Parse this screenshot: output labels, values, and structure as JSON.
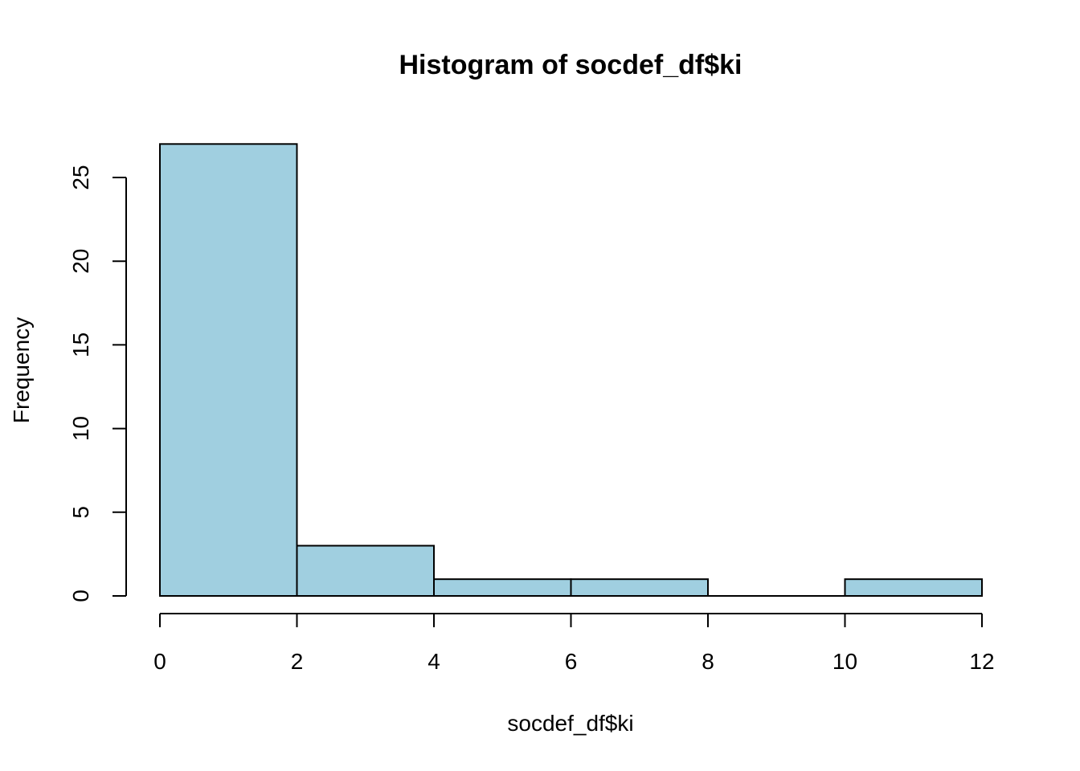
{
  "chart_data": {
    "type": "bar",
    "subtype": "histogram",
    "title": "Histogram of socdef_df$ki",
    "xlabel": "socdef_df$ki",
    "ylabel": "Frequency",
    "bins": [
      {
        "x0": 0,
        "x1": 2,
        "count": 27
      },
      {
        "x0": 2,
        "x1": 4,
        "count": 3
      },
      {
        "x0": 4,
        "x1": 6,
        "count": 1
      },
      {
        "x0": 6,
        "x1": 8,
        "count": 1
      },
      {
        "x0": 8,
        "x1": 10,
        "count": 0
      },
      {
        "x0": 10,
        "x1": 12,
        "count": 1
      }
    ],
    "x_ticks": [
      "0",
      "2",
      "4",
      "6",
      "8",
      "10",
      "12"
    ],
    "y_ticks": [
      "0",
      "5",
      "10",
      "15",
      "20",
      "25"
    ],
    "xlim": [
      0,
      12
    ],
    "ylim": [
      0,
      27
    ],
    "grid": false,
    "bar_color": "#a0cfe0",
    "edge_color": "#000000"
  }
}
